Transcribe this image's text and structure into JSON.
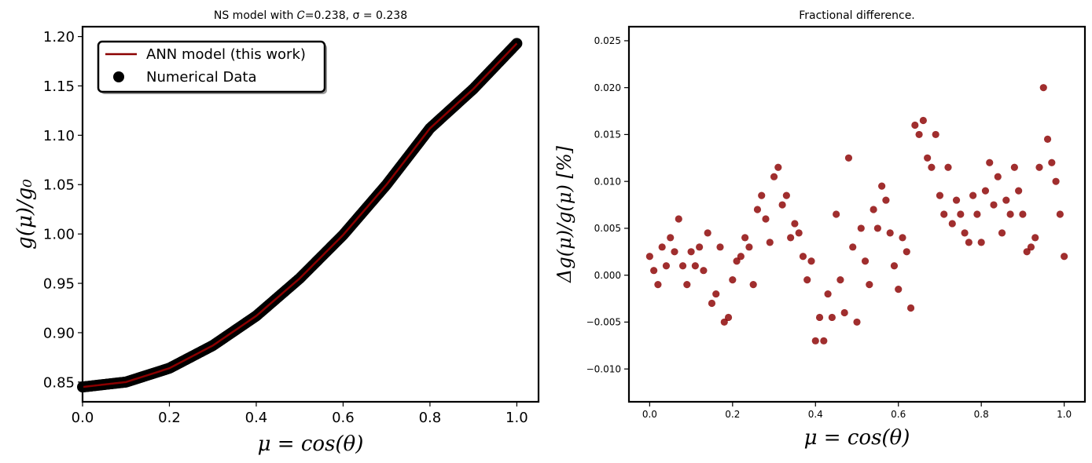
{
  "chart_data": [
    {
      "type": "line",
      "title": "NS model with 𝐶=0.238, σ = 0.238",
      "xlabel": "μ = cos(θ)",
      "ylabel": "g(μ)/g₀",
      "xlim": [
        0.0,
        1.05
      ],
      "ylim": [
        0.83,
        1.21
      ],
      "x_ticks": [
        0.0,
        0.2,
        0.4,
        0.6,
        0.8,
        1.0
      ],
      "x_tick_labels": [
        "0.0",
        "0.2",
        "0.4",
        "0.6",
        "0.8",
        "1.0"
      ],
      "y_ticks": [
        0.85,
        0.9,
        0.95,
        1.0,
        1.05,
        1.1,
        1.15,
        1.2
      ],
      "y_tick_labels": [
        "0.85",
        "0.90",
        "0.95",
        "1.00",
        "1.05",
        "1.10",
        "1.15",
        "1.20"
      ],
      "grid": false,
      "legend": {
        "placement": "top-left",
        "entries": [
          "ANN model (this work)",
          "Numerical Data"
        ]
      },
      "series": [
        {
          "name": "ANN model (this work)",
          "kind": "line",
          "color": "#8b0000",
          "x": [
            0.0,
            0.1,
            0.2,
            0.3,
            0.4,
            0.5,
            0.6,
            0.7,
            0.8,
            0.9,
            1.0
          ],
          "y": [
            0.845,
            0.85,
            0.864,
            0.887,
            0.917,
            0.955,
            0.999,
            1.05,
            1.107,
            1.147,
            1.193
          ]
        },
        {
          "name": "Numerical Data",
          "kind": "scatter",
          "color": "#000000",
          "x": [
            0.0,
            0.1,
            0.2,
            0.3,
            0.4,
            0.5,
            0.6,
            0.7,
            0.8,
            0.9,
            1.0
          ],
          "y": [
            0.845,
            0.85,
            0.864,
            0.887,
            0.917,
            0.955,
            0.999,
            1.05,
            1.107,
            1.147,
            1.193
          ]
        }
      ]
    },
    {
      "type": "scatter",
      "title": "Fractional difference.",
      "xlabel": "μ = cos(θ)",
      "ylabel": "Δg(μ)/g(μ)  [%]",
      "xlim": [
        -0.05,
        1.05
      ],
      "ylim": [
        -0.0135,
        0.0265
      ],
      "x_ticks": [
        0.0,
        0.2,
        0.4,
        0.6,
        0.8,
        1.0
      ],
      "x_tick_labels": [
        "0.0",
        "0.2",
        "0.4",
        "0.6",
        "0.8",
        "1.0"
      ],
      "y_ticks": [
        -0.01,
        -0.005,
        0.0,
        0.005,
        0.01,
        0.015,
        0.02,
        0.025
      ],
      "y_tick_labels": [
        "−0.010",
        "−0.005",
        "0.000",
        "0.005",
        "0.010",
        "0.015",
        "0.020",
        "0.025"
      ],
      "grid": false,
      "color": "#8b0000",
      "x": [
        0.0,
        0.01,
        0.02,
        0.03,
        0.04,
        0.05,
        0.06,
        0.07,
        0.08,
        0.09,
        0.1,
        0.11,
        0.12,
        0.13,
        0.14,
        0.15,
        0.16,
        0.17,
        0.18,
        0.19,
        0.2,
        0.21,
        0.22,
        0.23,
        0.24,
        0.25,
        0.26,
        0.27,
        0.28,
        0.29,
        0.3,
        0.31,
        0.32,
        0.33,
        0.34,
        0.35,
        0.36,
        0.37,
        0.38,
        0.39,
        0.4,
        0.41,
        0.42,
        0.43,
        0.44,
        0.45,
        0.46,
        0.47,
        0.48,
        0.49,
        0.5,
        0.51,
        0.52,
        0.53,
        0.54,
        0.55,
        0.56,
        0.57,
        0.58,
        0.59,
        0.6,
        0.61,
        0.62,
        0.63,
        0.64,
        0.65,
        0.66,
        0.67,
        0.68,
        0.69,
        0.7,
        0.71,
        0.72,
        0.73,
        0.74,
        0.75,
        0.76,
        0.77,
        0.78,
        0.79,
        0.8,
        0.81,
        0.82,
        0.83,
        0.84,
        0.85,
        0.86,
        0.87,
        0.88,
        0.89,
        0.9,
        0.91,
        0.92,
        0.93,
        0.94,
        0.95,
        0.96,
        0.97,
        0.98,
        0.99,
        1.0
      ],
      "y": [
        0.002,
        0.0005,
        -0.001,
        0.003,
        0.001,
        0.004,
        0.0025,
        0.006,
        0.001,
        -0.001,
        0.0025,
        0.001,
        0.003,
        0.0005,
        0.0045,
        -0.003,
        -0.002,
        0.003,
        -0.005,
        -0.0045,
        -0.0005,
        0.0015,
        0.002,
        0.004,
        0.003,
        -0.001,
        0.007,
        0.0085,
        0.006,
        0.0035,
        0.0105,
        0.0115,
        0.0075,
        0.0085,
        0.004,
        0.0055,
        0.0045,
        0.002,
        -0.0005,
        0.0015,
        -0.007,
        -0.0045,
        -0.007,
        -0.002,
        -0.0045,
        0.0065,
        -0.0005,
        -0.004,
        0.0125,
        0.003,
        -0.005,
        0.005,
        0.0015,
        -0.001,
        0.007,
        0.005,
        0.0095,
        0.008,
        0.0045,
        0.001,
        -0.0015,
        0.004,
        0.0025,
        -0.0035,
        0.016,
        0.015,
        0.0165,
        0.0125,
        0.0115,
        0.015,
        0.0085,
        0.0065,
        0.0115,
        0.0055,
        0.008,
        0.0065,
        0.0045,
        0.0035,
        0.0085,
        0.0065,
        0.0035,
        0.009,
        0.012,
        0.0075,
        0.0105,
        0.0045,
        0.008,
        0.0065,
        0.0115,
        0.009,
        0.0065,
        0.0025,
        0.003,
        0.004,
        0.0115,
        0.02,
        0.0145,
        0.012,
        0.01,
        0.0065,
        0.002
      ]
    }
  ]
}
